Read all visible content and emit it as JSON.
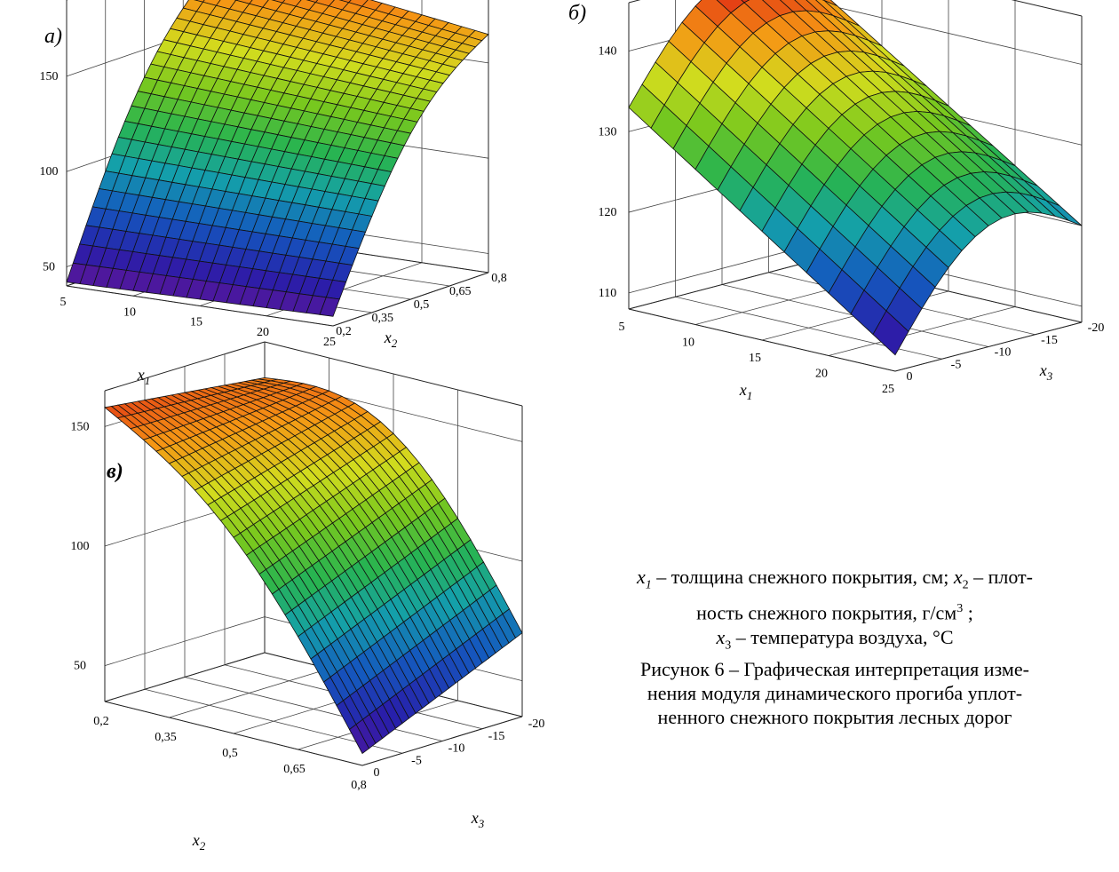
{
  "caption": {
    "line1_a": "x",
    "line1_a_sub": "1",
    "line1_b": " – толщина снежного покрытия, см; ",
    "line1_c": "x",
    "line1_c_sub": "2",
    "line1_d": " – плот-",
    "line2_a": "ность снежного покрытия, г/см",
    "line2_sup": "3",
    "line2_b": " ;",
    "line3_a": "x",
    "line3_sub": "3",
    "line3_b": " – температура воздуха, °С",
    "line4": "Рисунок 6 – Графическая интерпретация изме-",
    "line5": "нения модуля динамического прогиба уплот-",
    "line6": "ненного снежного покрытия лесных дорог"
  },
  "chart_data": [
    {
      "type": "surface",
      "panel_label": "а)",
      "xlabel": "x",
      "xlabel_sub": "1",
      "ylabel": "x",
      "ylabel_sub": "2",
      "x_ticks": [
        "5",
        "10",
        "15",
        "20",
        "25"
      ],
      "y_ticks": [
        "0,2",
        "0,35",
        "0,5",
        "0,65",
        "0,8"
      ],
      "z_ticks": [
        "50",
        "100",
        "150"
      ],
      "x_range": [
        5,
        25
      ],
      "y_range": [
        0.2,
        0.8
      ],
      "z_range": [
        40,
        190
      ],
      "corner_values": {
        "x5_y0.2": 42,
        "x25_y0.2": 45,
        "x5_y0.8": 185,
        "x25_y0.8": 165
      },
      "colormap": "rainbow",
      "grid": true
    },
    {
      "type": "surface",
      "panel_label": "б)",
      "xlabel": "x",
      "xlabel_sub": "1",
      "ylabel": "x",
      "ylabel_sub": "3",
      "x_ticks": [
        "5",
        "10",
        "15",
        "20",
        "25"
      ],
      "y_ticks": [
        "0",
        "-5",
        "-10",
        "-15",
        "-20"
      ],
      "z_ticks": [
        "110",
        "120",
        "130",
        "140"
      ],
      "x_range": [
        5,
        25
      ],
      "y_range": [
        0,
        -20
      ],
      "z_range": [
        108,
        146
      ],
      "peak_value": 145,
      "corner_values": {
        "x5_y0": 133,
        "x25_y0": 110,
        "x5_y-20": 142,
        "x25_y-20": 120
      },
      "colormap": "rainbow",
      "grid": true
    },
    {
      "type": "surface",
      "panel_label": "в)",
      "xlabel": "x",
      "xlabel_sub": "2",
      "ylabel": "x",
      "ylabel_sub": "3",
      "x_ticks": [
        "0,2",
        "0,35",
        "0,5",
        "0,65",
        "0,8"
      ],
      "y_ticks": [
        "0",
        "-5",
        "-10",
        "-15",
        "-20"
      ],
      "z_ticks": [
        "50",
        "100",
        "150"
      ],
      "x_range": [
        0.2,
        0.8
      ],
      "y_range": [
        0,
        -20
      ],
      "z_range": [
        35,
        165
      ],
      "peak_value": 160,
      "corner_values": {
        "x0.2_y0": 158,
        "x0.8_y0": 40,
        "x0.2_y-20": 150,
        "x0.8_y-20": 70
      },
      "colormap": "rainbow",
      "grid": true
    }
  ]
}
